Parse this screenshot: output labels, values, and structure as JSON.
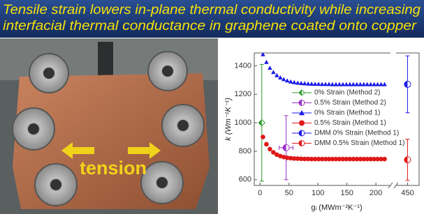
{
  "chart_data": {
    "type": "scatter",
    "title": [
      "Tensile strain lowers in-plane thermal conductivity while increasing",
      "interfacial thermal conductance in graphene coated onto copper"
    ],
    "photo_label": "tension",
    "xlabel": "gᵢ (MWm⁻²K⁻¹)",
    "ylabel": "k (Wm⁻¹K⁻¹)",
    "xlim": [
      -10,
      470
    ],
    "xbreak": [
      225,
      430
    ],
    "xticks": [
      0,
      50,
      100,
      150,
      200,
      450
    ],
    "ylim": [
      560,
      1490
    ],
    "yticks": [
      600,
      800,
      1000,
      1200,
      1400
    ],
    "series": [
      {
        "name": "0% Strain (Method 2)",
        "color": "#2a9a2a",
        "marker": "diamond",
        "x": [
          3
        ],
        "values": [
          1000
        ],
        "yerr": [
          410
        ]
      },
      {
        "name": "0.5% Strain (Method 2)",
        "color": "#9b30c8",
        "marker": "half",
        "x": [
          45
        ],
        "values": [
          825
        ],
        "yerr": [
          225
        ],
        "xerr": [
          12
        ]
      },
      {
        "name": "0% Strain (Method 1)",
        "color": "#1a1ae6",
        "marker": "triangle",
        "x": [
          5,
          11,
          17,
          23,
          29,
          35,
          41,
          47,
          53,
          59,
          65,
          71,
          77,
          83,
          89,
          95,
          101,
          107,
          113,
          119,
          125,
          131,
          137,
          143,
          149,
          155,
          161,
          167,
          173,
          179,
          185,
          191,
          197,
          203,
          209,
          215
        ],
        "values": [
          1480,
          1426,
          1385,
          1355,
          1333,
          1317,
          1305,
          1296,
          1289,
          1284,
          1280,
          1278,
          1276,
          1274,
          1273,
          1272,
          1272,
          1271,
          1271,
          1271,
          1270,
          1270,
          1270,
          1270,
          1270,
          1270,
          1270,
          1270,
          1270,
          1270,
          1270,
          1270,
          1270,
          1270,
          1270,
          1270
        ]
      },
      {
        "name": "0.5% Strain (Method 1)",
        "color": "#e01818",
        "marker": "circle",
        "x": [
          5,
          11,
          17,
          23,
          29,
          35,
          41,
          47,
          53,
          59,
          65,
          71,
          77,
          83,
          89,
          95,
          101,
          107,
          113,
          119,
          125,
          131,
          137,
          143,
          149,
          155,
          161,
          167,
          173,
          179,
          185,
          191,
          197,
          203,
          209,
          215
        ],
        "values": [
          900,
          849,
          815,
          792,
          776,
          766,
          759,
          754,
          751,
          749,
          748,
          747,
          746,
          746,
          745,
          745,
          745,
          745,
          745,
          745,
          745,
          745,
          745,
          745,
          745,
          745,
          745,
          745,
          745,
          745,
          745,
          745,
          745,
          745,
          745,
          745
        ]
      },
      {
        "name": "DMM 0% Strain (Method 1)",
        "color": "#1a1ae6",
        "marker": "half",
        "x": [
          450
        ],
        "values": [
          1270
        ],
        "yerr": [
          200
        ]
      },
      {
        "name": "DMM 0.5% Strain (Method 1)",
        "color": "#e01818",
        "marker": "half",
        "x": [
          450
        ],
        "values": [
          740
        ],
        "yerr": [
          145
        ]
      }
    ]
  }
}
